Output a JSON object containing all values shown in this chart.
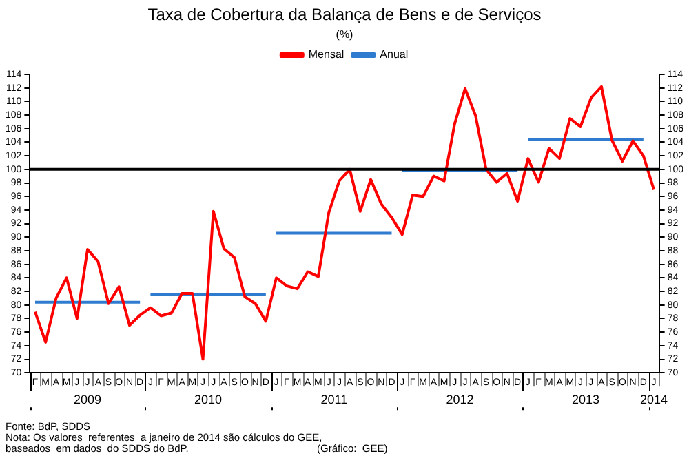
{
  "chart_data": {
    "type": "line",
    "title": "Taxa de Cobertura da Balança de Bens e de Serviços",
    "subtitle": "(%)",
    "categories": [
      "F",
      "M",
      "A",
      "M",
      "J",
      "J",
      "A",
      "S",
      "O",
      "N",
      "D",
      "J",
      "F",
      "M",
      "A",
      "M",
      "J",
      "J",
      "A",
      "S",
      "O",
      "N",
      "D",
      "J",
      "F",
      "M",
      "A",
      "M",
      "J",
      "J",
      "A",
      "S",
      "O",
      "N",
      "D",
      "J",
      "F",
      "M",
      "A",
      "M",
      "J",
      "J",
      "A",
      "S",
      "O",
      "N",
      "D",
      "J",
      "F",
      "M",
      "A",
      "M",
      "J",
      "J",
      "A",
      "S",
      "O",
      "N",
      "D",
      "J"
    ],
    "series": [
      {
        "name": "Mensal",
        "color": "#ff0000",
        "values": [
          79,
          74.5,
          81,
          84,
          78,
          88.2,
          86.4,
          80.2,
          82.7,
          77,
          78.5,
          79.6,
          78.4,
          78.8,
          81.7,
          81.7,
          72,
          93.8,
          88.3,
          87,
          81.2,
          80.2,
          77.6,
          84,
          82.8,
          82.4,
          84.9,
          84.2,
          93.6,
          98.3,
          100,
          93.8,
          98.5,
          94.9,
          92.9,
          90.4,
          96.2,
          96,
          99,
          98.3,
          106.7,
          111.9,
          107.9,
          100,
          98.1,
          99.4,
          95.3,
          101.6,
          98.1,
          103.1,
          101.6,
          107.5,
          106.3,
          110.5,
          112.2,
          104.3,
          101.2,
          104.2,
          102,
          97
        ]
      },
      {
        "name": "Anual",
        "color": "#2e7bcf",
        "values": [
          80.4,
          80.4,
          80.4,
          80.4,
          80.4,
          80.4,
          80.4,
          80.4,
          80.4,
          80.4,
          80.4,
          null,
          null,
          null,
          null,
          null,
          null,
          null,
          null,
          null,
          null,
          null,
          null,
          null,
          null,
          null,
          null,
          null,
          null,
          null,
          null,
          null,
          null,
          null,
          null,
          null,
          null,
          null,
          null,
          null,
          null,
          null,
          null,
          null,
          null,
          null,
          null,
          null,
          null,
          null,
          null,
          null,
          null,
          null,
          null,
          null,
          null,
          null,
          null,
          null
        ]
      },
      {
        "color": "#2e7bcf",
        "values": [
          null,
          null,
          null,
          null,
          null,
          null,
          null,
          null,
          null,
          null,
          null,
          81.5,
          81.5,
          81.5,
          81.5,
          81.5,
          81.5,
          81.5,
          81.5,
          81.5,
          81.5,
          81.5,
          81.5,
          null,
          null,
          null,
          null,
          null,
          null,
          null,
          null,
          null,
          null,
          null,
          null,
          null,
          null,
          null,
          null,
          null,
          null,
          null,
          null,
          null,
          null,
          null,
          null,
          null,
          null,
          null,
          null,
          null,
          null,
          null,
          null,
          null,
          null,
          null,
          null,
          null
        ]
      },
      {
        "color": "#2e7bcf",
        "values": [
          null,
          null,
          null,
          null,
          null,
          null,
          null,
          null,
          null,
          null,
          null,
          null,
          null,
          null,
          null,
          null,
          null,
          null,
          null,
          null,
          null,
          null,
          null,
          90.6,
          90.6,
          90.6,
          90.6,
          90.6,
          90.6,
          90.6,
          90.6,
          90.6,
          90.6,
          90.6,
          90.6,
          null,
          null,
          null,
          null,
          null,
          null,
          null,
          null,
          null,
          null,
          null,
          null,
          null,
          null,
          null,
          null,
          null,
          null,
          null,
          null,
          null,
          null,
          null,
          null,
          null
        ]
      },
      {
        "color": "#2e7bcf",
        "values": [
          null,
          null,
          null,
          null,
          null,
          null,
          null,
          null,
          null,
          null,
          null,
          null,
          null,
          null,
          null,
          null,
          null,
          null,
          null,
          null,
          null,
          null,
          null,
          null,
          null,
          null,
          null,
          null,
          null,
          null,
          null,
          null,
          null,
          null,
          null,
          99.8,
          99.8,
          99.8,
          99.8,
          99.8,
          99.8,
          99.8,
          99.8,
          99.8,
          99.8,
          99.8,
          99.8,
          null,
          null,
          null,
          null,
          null,
          null,
          null,
          null,
          null,
          null,
          null,
          null,
          null
        ]
      },
      {
        "color": "#2e7bcf",
        "values": [
          null,
          null,
          null,
          null,
          null,
          null,
          null,
          null,
          null,
          null,
          null,
          null,
          null,
          null,
          null,
          null,
          null,
          null,
          null,
          null,
          null,
          null,
          null,
          null,
          null,
          null,
          null,
          null,
          null,
          null,
          null,
          null,
          null,
          null,
          null,
          null,
          null,
          null,
          null,
          null,
          null,
          null,
          null,
          null,
          null,
          null,
          null,
          104.4,
          104.4,
          104.4,
          104.4,
          104.4,
          104.4,
          104.4,
          104.4,
          104.4,
          104.4,
          104.4,
          104.4,
          null
        ]
      }
    ],
    "ylim": [
      70,
      114
    ],
    "yticks": [
      70,
      72,
      74,
      76,
      78,
      80,
      82,
      84,
      86,
      88,
      90,
      92,
      94,
      96,
      98,
      100,
      102,
      104,
      106,
      108,
      110,
      112,
      114
    ],
    "y2lim": [
      70,
      114
    ],
    "y2ticks": [
      70,
      72,
      74,
      76,
      78,
      80,
      82,
      84,
      86,
      88,
      90,
      92,
      94,
      96,
      98,
      100,
      102,
      104,
      106,
      108,
      110,
      112,
      114
    ],
    "ref_lines": [
      {
        "axis": "y",
        "value": 100,
        "color": "#000000"
      }
    ],
    "legend": "top",
    "grid": false,
    "marker": "none",
    "line_style": "solid",
    "annotations": [
      "2009",
      "2010",
      "2011",
      "2012",
      "2013",
      "2014",
      "Fonte: BdP, SDDS",
      "Nota: Os valores  referentes  a janeiro de 2014 são cálculos do GEE,",
      "baseados  em dados  do SDDS do BdP.",
      "(Gráfico:  GEE)"
    ]
  }
}
